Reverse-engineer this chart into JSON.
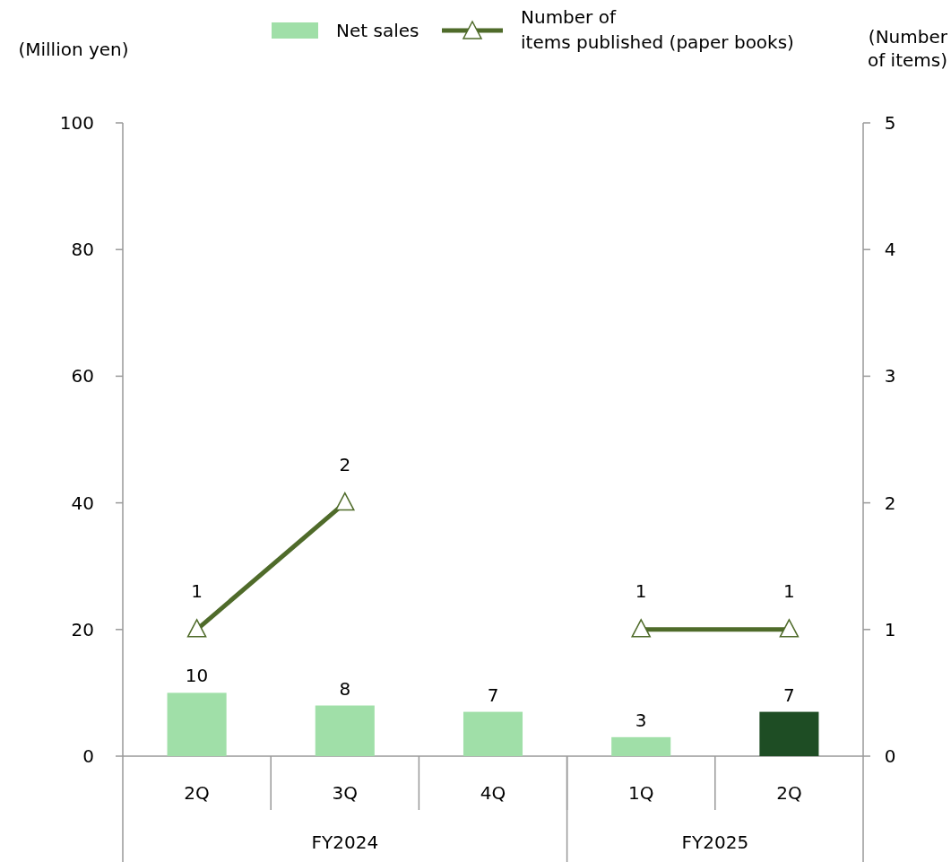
{
  "chart_data": {
    "type": "bar",
    "categories": [
      "2Q",
      "3Q",
      "4Q",
      "1Q",
      "2Q"
    ],
    "series": [
      {
        "name": "Net sales",
        "colors": [
          "#a0dfa8",
          "#a0dfa8",
          "#a0dfa8",
          "#a0dfa8",
          "#1e4d24"
        ],
        "values": [
          10,
          8,
          7,
          3,
          7
        ]
      },
      {
        "name": "Number of items published (paper books)",
        "type": "line",
        "axis": "y2",
        "color": "#4f6b2a",
        "marker": "triangle",
        "values": [
          1,
          2,
          null,
          1,
          1
        ]
      }
    ],
    "data_labels": true,
    "ylabel": "(Million yen)",
    "y2label": "(Number of items)",
    "ylim": [
      0,
      100
    ],
    "yticks": [
      0,
      20,
      40,
      60,
      80,
      100
    ],
    "y2lim": [
      0,
      5
    ],
    "y2ticks": [
      0,
      1,
      2,
      3,
      4,
      5
    ],
    "annotations": [
      "FY2024",
      "FY2025"
    ],
    "grid": false,
    "legend": "top"
  }
}
